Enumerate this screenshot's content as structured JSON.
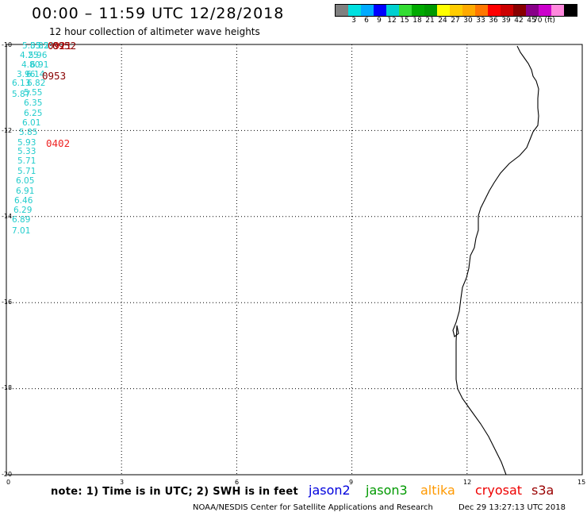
{
  "title": "00:00 – 11:59 UTC 12/28/2018",
  "subtitle": "12 hour collection of altimeter wave heights",
  "color_scale": {
    "swatches": [
      "#808080",
      "#00e0e0",
      "#00aaff",
      "#0000ff",
      "#00d0d0",
      "#33dd33",
      "#00aa00",
      "#009900",
      "#ffff00",
      "#ffcc00",
      "#ffaa00",
      "#ff7700",
      "#ff0000",
      "#cc0000",
      "#880000",
      "#880088",
      "#cc00cc",
      "#ff88dd",
      "#000000"
    ],
    "labels": [
      "3",
      "6",
      "9",
      "12",
      "15",
      "18",
      "21",
      "24",
      "27",
      "30",
      "33",
      "36",
      "39",
      "42",
      "45",
      "70 (ft)"
    ]
  },
  "map": {
    "lon_ticks": [
      "0",
      "3",
      "6",
      "9",
      "12",
      "15"
    ],
    "lat_ticks": [
      "-10",
      "-12",
      "-14",
      "-16",
      "-18",
      "-20"
    ],
    "lon_range": [
      0,
      15
    ],
    "lat_range": [
      -20,
      -10
    ],
    "grid": "dotted"
  },
  "observations": {
    "cyan_color": "#22cccc",
    "cyan_values": [
      "5.83",
      "5.85",
      "5.29",
      "4.25",
      "5.96",
      "4.80",
      "6.91",
      "3.96",
      "6.14",
      "6.13",
      "6.82",
      "5.87",
      "5.55",
      "6.35",
      "6.25",
      "6.01",
      "5.85",
      "5.93",
      "5.33",
      "5.71",
      "5.71",
      "6.05",
      "6.91",
      "6.46",
      "6.29",
      "6.89",
      "7.01"
    ],
    "time_labels": [
      {
        "text": "0921",
        "color": "#cc0000"
      },
      {
        "text": "0952",
        "color": "#880000"
      },
      {
        "text": "0953",
        "color": "#880000"
      },
      {
        "text": "0402",
        "color": "#ee2222"
      }
    ]
  },
  "note": "note: 1) Time is in UTC; 2) SWH is in feet",
  "legend": [
    {
      "label": "jason2",
      "color": "#0000dd"
    },
    {
      "label": "jason3",
      "color": "#009900"
    },
    {
      "label": "altika",
      "color": "#ff9900"
    },
    {
      "label": "cryosat",
      "color": "#ee0000"
    },
    {
      "label": "s3a",
      "color": "#990000"
    }
  ],
  "footer_left": "NOAA/NESDIS Center for Satellite Applications and Research",
  "footer_right": "Dec 29 13:27:13 UTC 2018"
}
